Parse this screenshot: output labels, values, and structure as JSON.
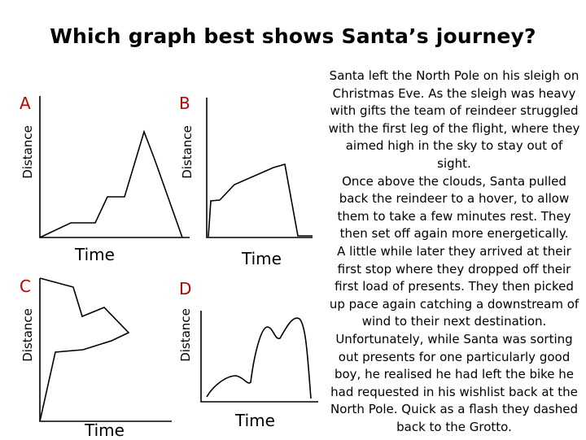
{
  "title": "Which graph best shows Santa’s journey?",
  "graphs": [
    {
      "letter": "A",
      "ylabel": "Distance",
      "xlabel": "Time"
    },
    {
      "letter": "B",
      "ylabel": "Distance",
      "xlabel": "Time"
    },
    {
      "letter": "C",
      "ylabel": "Distance",
      "xlabel": "Time"
    },
    {
      "letter": "D",
      "ylabel": "Distance",
      "xlabel": "Time"
    }
  ],
  "colors": {
    "letter": "#c00000",
    "line": "#000000"
  },
  "story": [
    "Santa left the North Pole on his sleigh on Christmas Eve. As the sleigh was heavy with gifts the team of reindeer struggled with the first leg of the flight, where they aimed high in the sky to stay out of sight.",
    "Once above the clouds, Santa pulled back the reindeer to a hover, to allow them to take a few minutes rest.  They then set off again more energetically.",
    "A little while later they arrived at their first stop where they dropped off their first load of presents.  They then picked up pace again catching a downstream of wind to their next destination. Unfortunately, while Santa was sorting out presents for one particularly good boy, he realised he had left the bike he had requested in his wishlist back at the North Pole. Quick as a flash they dashed back to the Grotto."
  ]
}
